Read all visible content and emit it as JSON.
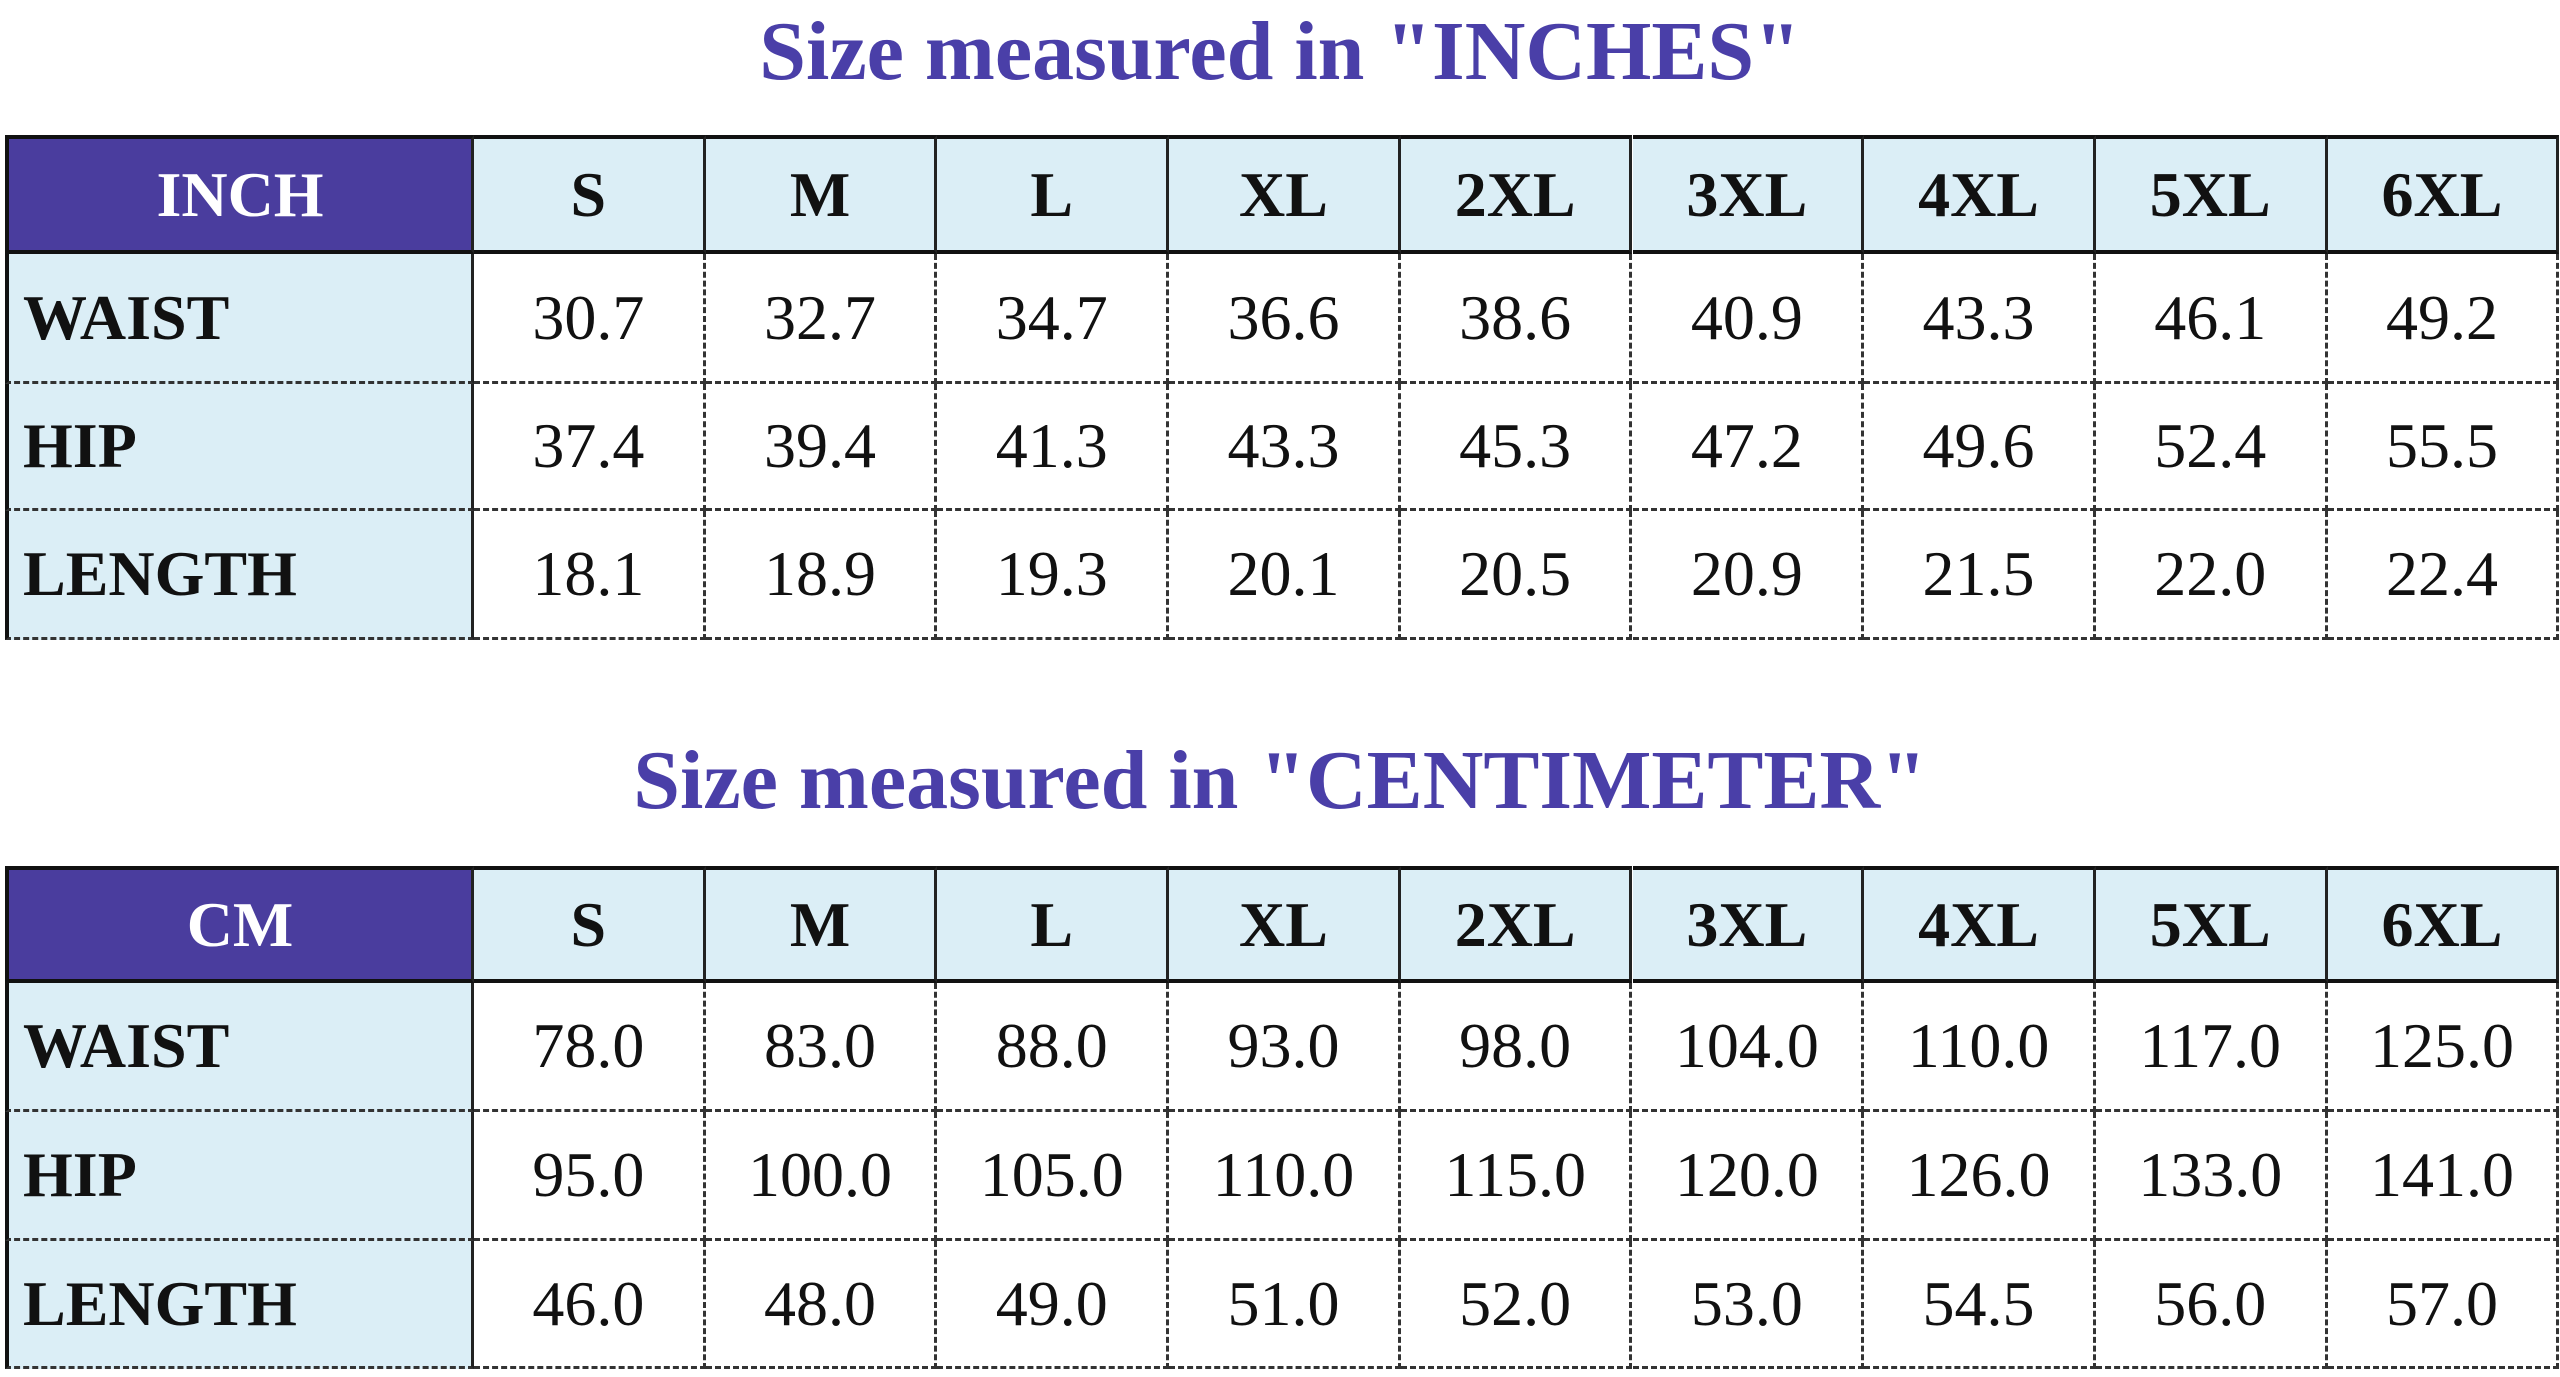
{
  "tables": [
    {
      "title": "Size measured in \"INCHES\"",
      "header": [
        "INCH",
        "S",
        "M",
        "L",
        "XL",
        "2XL",
        "3XL",
        "4XL",
        "5XL",
        "6XL"
      ],
      "rows": [
        [
          "WAIST",
          "30.7",
          "32.7",
          "34.7",
          "36.6",
          "38.6",
          "40.9",
          "43.3",
          "46.1",
          "49.2"
        ],
        [
          "HIP",
          "37.4",
          "39.4",
          "41.3",
          "43.3",
          "45.3",
          "47.2",
          "49.6",
          "52.4",
          "55.5"
        ],
        [
          "LENGTH",
          "18.1",
          "18.9",
          "19.3",
          "20.1",
          "20.5",
          "20.9",
          "21.5",
          "22.0",
          "22.4"
        ]
      ]
    },
    {
      "title": "Size measured in \"CENTIMETER\"",
      "header": [
        "CM",
        "S",
        "M",
        "L",
        "XL",
        "2XL",
        "3XL",
        "4XL",
        "5XL",
        "6XL"
      ],
      "rows": [
        [
          "WAIST",
          "78.0",
          "83.0",
          "88.0",
          "93.0",
          "98.0",
          "104.0",
          "110.0",
          "117.0",
          "125.0"
        ],
        [
          "HIP",
          "95.0",
          "100.0",
          "105.0",
          "110.0",
          "115.0",
          "120.0",
          "126.0",
          "133.0",
          "141.0"
        ],
        [
          "LENGTH",
          "46.0",
          "48.0",
          "49.0",
          "51.0",
          "52.0",
          "53.0",
          "54.5",
          "56.0",
          "57.0"
        ]
      ]
    }
  ]
}
